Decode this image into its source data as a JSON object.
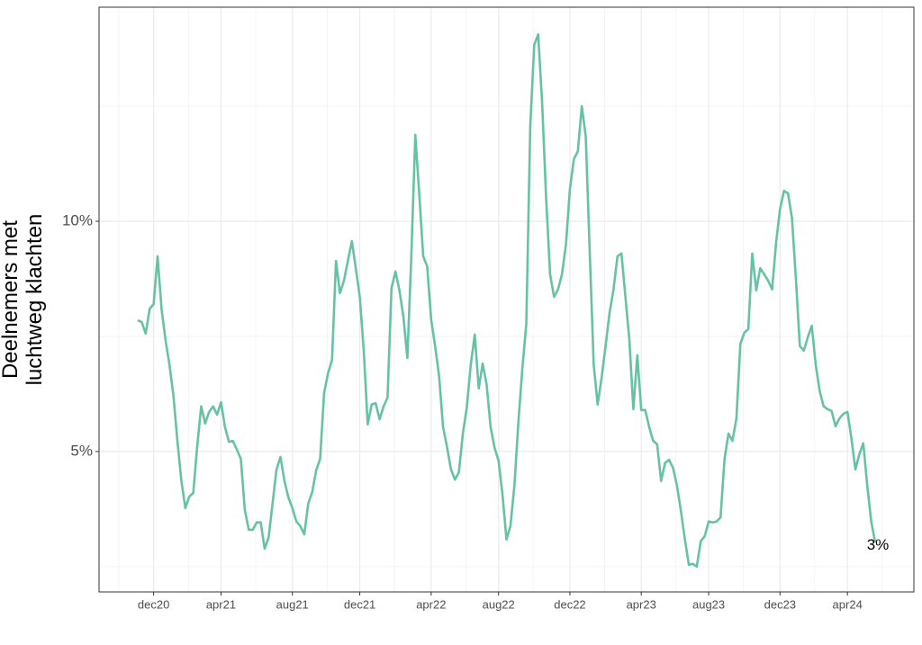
{
  "chart_data": {
    "type": "line",
    "y_label": [
      "Deelnemers met",
      "luchtweg klachten"
    ],
    "categories": [
      null,
      null,
      null,
      null,
      "dec20",
      null,
      null,
      null,
      null,
      null,
      null,
      null,
      null,
      null,
      null,
      null,
      null,
      null,
      null,
      null,
      null,
      "apr21",
      null,
      null,
      null,
      null,
      null,
      null,
      null,
      null,
      null,
      null,
      null,
      null,
      null,
      null,
      null,
      null,
      null,
      "aug21",
      null,
      null,
      null,
      null,
      null,
      null,
      null,
      null,
      null,
      null,
      null,
      null,
      null,
      null,
      null,
      null,
      "dec21",
      null,
      null,
      null,
      null,
      null,
      null,
      null,
      null,
      null,
      null,
      null,
      null,
      null,
      null,
      null,
      null,
      null,
      "apr22",
      null,
      null,
      null,
      null,
      null,
      null,
      null,
      null,
      null,
      null,
      null,
      null,
      null,
      null,
      null,
      null,
      "aug22",
      null,
      null,
      null,
      null,
      null,
      null,
      null,
      null,
      null,
      null,
      null,
      null,
      null,
      null,
      null,
      null,
      null,
      "dec22",
      null,
      null,
      null,
      null,
      null,
      null,
      null,
      null,
      null,
      null,
      null,
      null,
      null,
      null,
      null,
      null,
      null,
      "apr23",
      null,
      null,
      null,
      null,
      null,
      null,
      null,
      null,
      null,
      null,
      null,
      null,
      null,
      null,
      null,
      null,
      "aug23",
      null,
      null,
      null,
      null,
      null,
      null,
      null,
      null,
      null,
      null,
      null,
      null,
      null,
      null,
      null,
      null,
      null,
      "dec23",
      null,
      null,
      null,
      null,
      null,
      null,
      null,
      null,
      null,
      null,
      null,
      null,
      null,
      null,
      null,
      null,
      "apr24",
      null,
      null,
      null,
      null,
      null,
      null,
      null
    ],
    "series": [
      {
        "color": "#66c2a5",
        "values": [
          7.85,
          7.81,
          7.56,
          8.1,
          8.2,
          9.24,
          8.1,
          7.42,
          6.88,
          6.21,
          5.23,
          4.36,
          3.77,
          4.02,
          4.1,
          5.12,
          5.98,
          5.61,
          5.86,
          5.98,
          5.8,
          6.07,
          5.53,
          5.21,
          5.23,
          5.04,
          4.84,
          3.73,
          3.3,
          3.3,
          3.46,
          3.46,
          2.89,
          3.13,
          3.87,
          4.61,
          4.88,
          4.36,
          4.0,
          3.77,
          3.48,
          3.38,
          3.2,
          3.87,
          4.12,
          4.59,
          4.84,
          6.27,
          6.7,
          6.99,
          9.14,
          8.44,
          8.71,
          9.14,
          9.57,
          8.98,
          8.36,
          7.19,
          5.59,
          6.02,
          6.05,
          5.7,
          5.98,
          6.17,
          8.55,
          8.91,
          8.5,
          7.93,
          7.03,
          9.24,
          11.88,
          10.6,
          9.24,
          9.02,
          7.87,
          7.29,
          6.64,
          5.53,
          5.1,
          4.61,
          4.39,
          4.55,
          5.39,
          5.96,
          6.89,
          7.54,
          6.37,
          6.91,
          6.45,
          5.53,
          5.08,
          4.8,
          4.06,
          3.09,
          3.38,
          4.26,
          5.63,
          6.8,
          7.77,
          12.07,
          13.83,
          14.06,
          12.56,
          10.51,
          8.85,
          8.36,
          8.52,
          8.85,
          9.49,
          10.7,
          11.35,
          11.52,
          12.5,
          11.84,
          9.34,
          6.89,
          6.02,
          6.6,
          7.29,
          8.01,
          8.52,
          9.24,
          9.3,
          8.36,
          7.42,
          5.92,
          7.09,
          5.9,
          5.9,
          5.53,
          5.23,
          5.16,
          4.36,
          4.75,
          4.82,
          4.65,
          4.26,
          3.71,
          3.09,
          2.54,
          2.56,
          2.5,
          3.05,
          3.16,
          3.48,
          3.46,
          3.48,
          3.57,
          4.84,
          5.39,
          5.23,
          5.72,
          7.34,
          7.58,
          7.66,
          9.3,
          8.5,
          8.98,
          8.85,
          8.71,
          8.52,
          9.53,
          10.27,
          10.66,
          10.61,
          10.08,
          8.75,
          7.29,
          7.19,
          7.48,
          7.73,
          6.89,
          6.31,
          5.98,
          5.92,
          5.88,
          5.55,
          5.72,
          5.82,
          5.86,
          5.29,
          4.61,
          4.94,
          5.18,
          4.26,
          3.48,
          3.03
        ]
      }
    ],
    "annotation": "3%",
    "ylim": [
      1.95,
      14.65
    ],
    "yticks": [
      {
        "value": 5,
        "label": "5%"
      },
      {
        "value": 10,
        "label": "10%"
      }
    ],
    "y_minor_ticks": [
      2.5,
      7.5,
      12.5
    ],
    "grid": true
  }
}
